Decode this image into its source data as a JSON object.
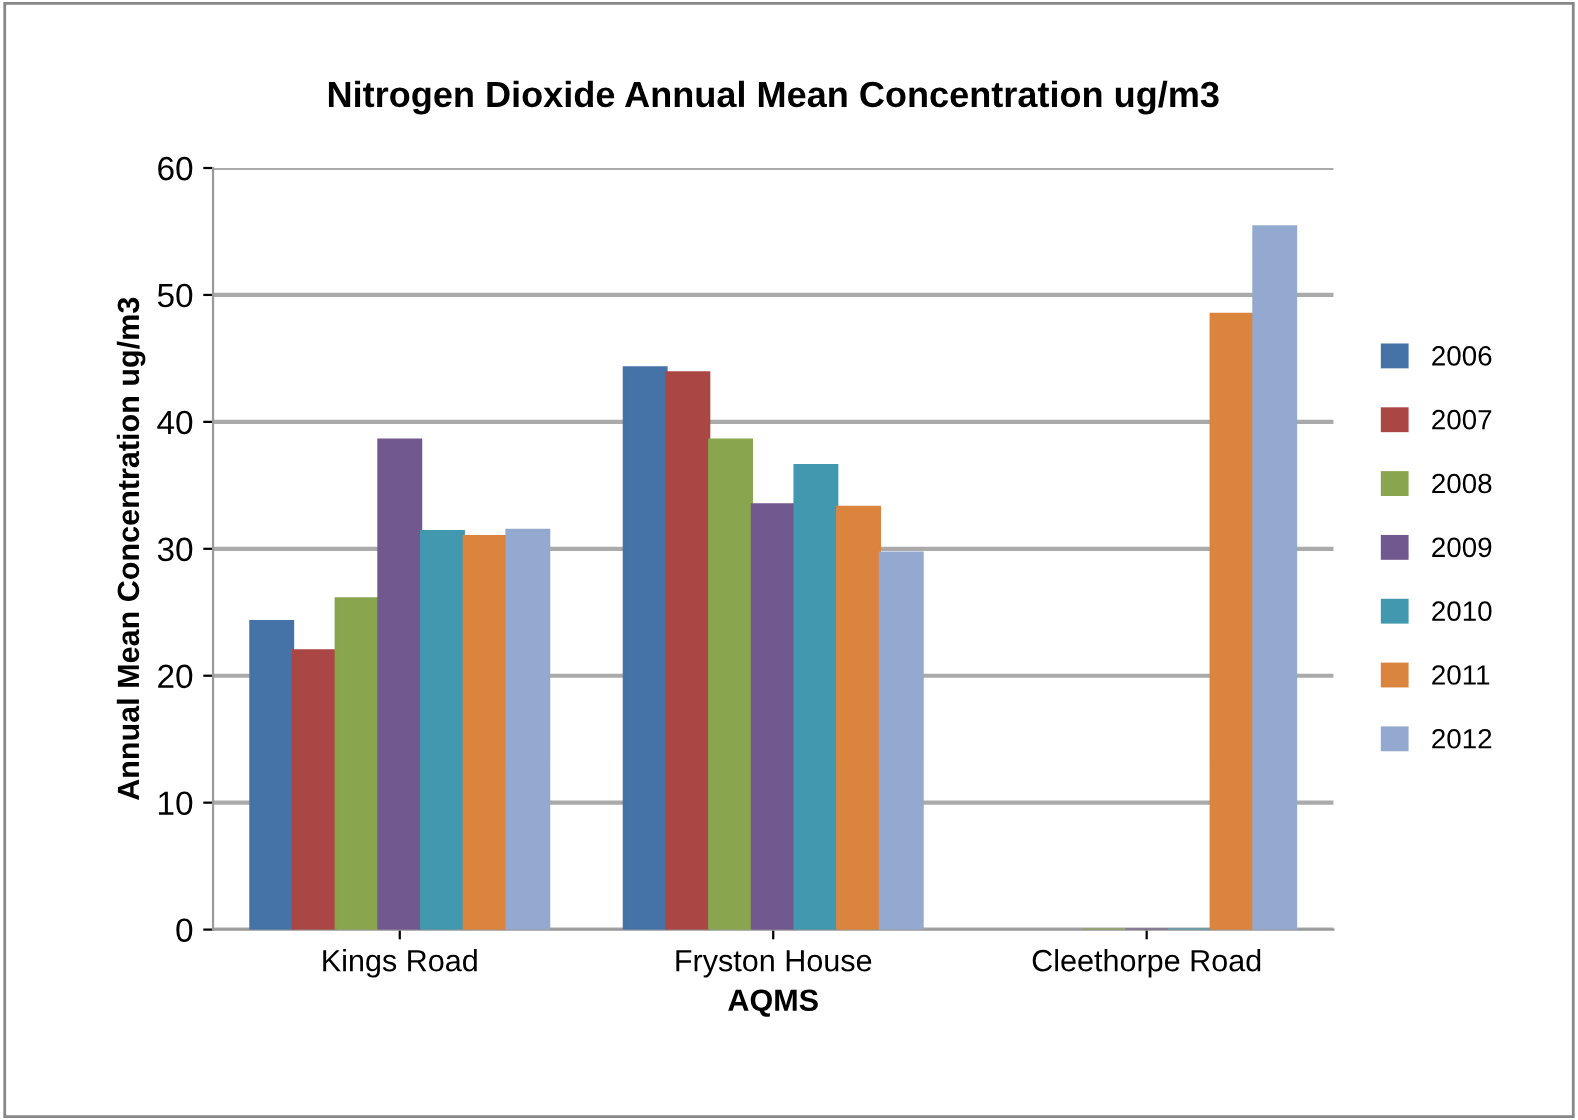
{
  "chart_data": {
    "type": "bar",
    "title": "Nitrogen Dioxide Annual Mean Concentration ug/m3",
    "xlabel": "AQMS",
    "ylabel": "Annual Mean Concentration ug/m3",
    "categories": [
      "Kings Road",
      "Fryston House",
      "Cleethorpe Road"
    ],
    "series": [
      {
        "name": "2006",
        "color": "#4572a7",
        "values": [
          24.3,
          44.3,
          null
        ]
      },
      {
        "name": "2007",
        "color": "#aa4643",
        "values": [
          22.0,
          43.9,
          null
        ]
      },
      {
        "name": "2008",
        "color": "#89a54e",
        "values": [
          26.1,
          38.6,
          0
        ]
      },
      {
        "name": "2009",
        "color": "#71588f",
        "values": [
          38.6,
          33.5,
          0
        ]
      },
      {
        "name": "2010",
        "color": "#4198af",
        "values": [
          31.4,
          36.6,
          0
        ]
      },
      {
        "name": "2011",
        "color": "#db843d",
        "values": [
          31.0,
          33.3,
          48.5
        ]
      },
      {
        "name": "2012",
        "color": "#93a9cf",
        "values": [
          31.5,
          29.7,
          55.4
        ]
      }
    ],
    "ylim": [
      0,
      60
    ],
    "yticks": [
      0,
      10,
      20,
      30,
      40,
      50,
      60
    ],
    "grid": "y",
    "legend": "right"
  }
}
